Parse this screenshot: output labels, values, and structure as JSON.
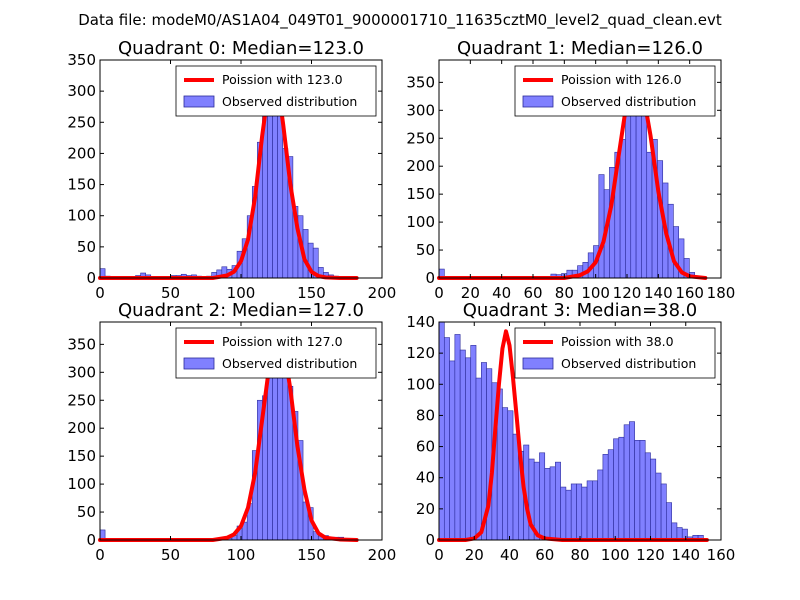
{
  "suptitle": "Data file: modeM0/AS1A04_049T01_9000001710_11635cztM0_level2_quad_clean.evt",
  "colors": {
    "bar_fill": "#8080ff",
    "bar_edge": "#2a2a9a",
    "poisson_line": "#ff0000",
    "axes": "#000000",
    "background": "#ffffff"
  },
  "chart_data": [
    {
      "type": "bar",
      "title": "Quadrant 0: Median=123.0",
      "xlim": [
        0,
        200
      ],
      "ylim": [
        0,
        350
      ],
      "xticks": [
        0,
        50,
        100,
        150,
        200
      ],
      "yticks": [
        0,
        50,
        100,
        150,
        200,
        250,
        300,
        350
      ],
      "xtick_labels": [
        "0",
        "50",
        "100",
        "150",
        "200"
      ],
      "ytick_labels": [
        "0",
        "50",
        "100",
        "150",
        "200",
        "250",
        "300",
        "350"
      ],
      "legend": {
        "placement": "top-right",
        "line_label": "Poission with 123.0",
        "bar_label": "Observed distribution"
      },
      "bin_width": 3.6,
      "bins": [
        [
          0,
          15
        ],
        [
          3.6,
          3
        ],
        [
          7.2,
          0
        ],
        [
          10.8,
          0
        ],
        [
          14.4,
          0
        ],
        [
          18,
          0
        ],
        [
          21.6,
          2
        ],
        [
          25.2,
          4
        ],
        [
          28.8,
          8
        ],
        [
          32.4,
          5
        ],
        [
          36,
          2
        ],
        [
          39.6,
          0
        ],
        [
          43.2,
          2
        ],
        [
          46.8,
          0
        ],
        [
          50.4,
          4
        ],
        [
          54,
          4
        ],
        [
          57.6,
          6
        ],
        [
          61.2,
          4
        ],
        [
          64.8,
          5
        ],
        [
          68.4,
          3
        ],
        [
          72,
          0
        ],
        [
          75.6,
          3
        ],
        [
          79.2,
          9
        ],
        [
          82.8,
          13
        ],
        [
          86.4,
          18
        ],
        [
          90,
          14
        ],
        [
          93.6,
          20
        ],
        [
          97.2,
          43
        ],
        [
          100.8,
          63
        ],
        [
          104.4,
          100
        ],
        [
          108,
          147
        ],
        [
          111.6,
          218
        ],
        [
          115.2,
          265
        ],
        [
          118.8,
          285
        ],
        [
          122.4,
          300
        ],
        [
          126,
          295
        ],
        [
          129.6,
          208
        ],
        [
          133.2,
          195
        ],
        [
          136.8,
          115
        ],
        [
          140.4,
          100
        ],
        [
          144,
          78
        ],
        [
          147.6,
          56
        ],
        [
          151.2,
          48
        ],
        [
          154.8,
          17
        ],
        [
          158.4,
          9
        ],
        [
          162,
          5
        ],
        [
          165.6,
          3
        ],
        [
          169.2,
          2
        ],
        [
          172.8,
          0
        ],
        [
          176.4,
          0
        ]
      ],
      "poisson": {
        "mean": 123.0,
        "x": [
          0,
          80,
          90,
          95,
          100,
          105,
          110,
          115,
          120,
          123,
          126,
          130,
          135,
          140,
          145,
          150,
          155,
          160,
          170,
          182
        ],
        "y": [
          0,
          0,
          4,
          10,
          27,
          62,
          130,
          228,
          311,
          335,
          312,
          245,
          150,
          80,
          30,
          10,
          3,
          1,
          0,
          0
        ]
      }
    },
    {
      "type": "bar",
      "title": "Quadrant 1: Median=126.0",
      "xlim": [
        0,
        180
      ],
      "ylim": [
        0,
        390
      ],
      "xticks": [
        0,
        20,
        40,
        60,
        80,
        100,
        120,
        140,
        160,
        180
      ],
      "yticks": [
        0,
        50,
        100,
        150,
        200,
        250,
        300,
        350
      ],
      "xtick_labels": [
        "0",
        "20",
        "40",
        "60",
        "80",
        "100",
        "120",
        "140",
        "160",
        "180"
      ],
      "ytick_labels": [
        "0",
        "50",
        "100",
        "150",
        "200",
        "250",
        "300",
        "350"
      ],
      "legend": {
        "placement": "top-right",
        "line_label": "Poission with 126.0",
        "bar_label": "Observed distribution"
      },
      "bin_width": 3.4,
      "bins": [
        [
          0,
          16
        ],
        [
          3.4,
          0
        ],
        [
          6.8,
          0
        ],
        [
          10.2,
          0
        ],
        [
          13.6,
          0
        ],
        [
          17,
          0
        ],
        [
          20.4,
          0
        ],
        [
          23.8,
          0
        ],
        [
          27.2,
          0
        ],
        [
          30.6,
          0
        ],
        [
          34,
          0
        ],
        [
          37.4,
          0
        ],
        [
          40.8,
          0
        ],
        [
          44.2,
          0
        ],
        [
          47.6,
          0
        ],
        [
          51,
          0
        ],
        [
          54.4,
          0
        ],
        [
          57.8,
          0
        ],
        [
          61.2,
          0
        ],
        [
          64.6,
          0
        ],
        [
          68,
          0
        ],
        [
          71.4,
          7
        ],
        [
          74.8,
          6
        ],
        [
          78.2,
          8
        ],
        [
          81.6,
          14
        ],
        [
          85,
          14
        ],
        [
          88.4,
          22
        ],
        [
          91.8,
          28
        ],
        [
          95.2,
          45
        ],
        [
          98.6,
          58
        ],
        [
          102,
          185
        ],
        [
          105.4,
          158
        ],
        [
          108.8,
          198
        ],
        [
          112.2,
          225
        ],
        [
          115.6,
          248
        ],
        [
          119,
          290
        ],
        [
          122.4,
          370
        ],
        [
          125.8,
          300
        ],
        [
          129.2,
          330
        ],
        [
          132.6,
          225
        ],
        [
          136,
          248
        ],
        [
          139.4,
          210
        ],
        [
          142.8,
          170
        ],
        [
          146.2,
          132
        ],
        [
          149.6,
          92
        ],
        [
          153,
          70
        ],
        [
          156.4,
          35
        ],
        [
          159.8,
          10
        ],
        [
          163.2,
          2
        ],
        [
          166.6,
          0
        ]
      ],
      "poisson": {
        "mean": 126.0,
        "x": [
          0,
          80,
          90,
          95,
          100,
          105,
          110,
          115,
          120,
          126,
          130,
          135,
          140,
          145,
          150,
          155,
          160,
          170
        ],
        "y": [
          0,
          0,
          5,
          12,
          28,
          65,
          130,
          225,
          318,
          372,
          335,
          255,
          155,
          80,
          30,
          10,
          3,
          0
        ]
      }
    },
    {
      "type": "bar",
      "title": "Quadrant 2: Median=127.0",
      "xlim": [
        0,
        200
      ],
      "ylim": [
        0,
        390
      ],
      "xticks": [
        0,
        50,
        100,
        150,
        200
      ],
      "yticks": [
        0,
        50,
        100,
        150,
        200,
        250,
        300,
        350
      ],
      "xtick_labels": [
        "0",
        "50",
        "100",
        "150",
        "200"
      ],
      "ytick_labels": [
        "0",
        "50",
        "100",
        "150",
        "200",
        "250",
        "300",
        "350"
      ],
      "legend": {
        "placement": "top-right",
        "line_label": "Poission with 127.0",
        "bar_label": "Observed distribution"
      },
      "bin_width": 3.6,
      "bins": [
        [
          0,
          18
        ],
        [
          3.6,
          0
        ],
        [
          7.2,
          0
        ],
        [
          10.8,
          0
        ],
        [
          14.4,
          0
        ],
        [
          18,
          0
        ],
        [
          21.6,
          0
        ],
        [
          25.2,
          0
        ],
        [
          28.8,
          0
        ],
        [
          32.4,
          0
        ],
        [
          36,
          0
        ],
        [
          39.6,
          0
        ],
        [
          43.2,
          0
        ],
        [
          46.8,
          0
        ],
        [
          50.4,
          0
        ],
        [
          54,
          0
        ],
        [
          57.6,
          0
        ],
        [
          61.2,
          0
        ],
        [
          64.8,
          0
        ],
        [
          68.4,
          0
        ],
        [
          72,
          0
        ],
        [
          75.6,
          0
        ],
        [
          79.2,
          0
        ],
        [
          82.8,
          0
        ],
        [
          86.4,
          0
        ],
        [
          90,
          3
        ],
        [
          93.6,
          8
        ],
        [
          97.2,
          25
        ],
        [
          100.8,
          32
        ],
        [
          104.4,
          65
        ],
        [
          108,
          160
        ],
        [
          111.6,
          250
        ],
        [
          115.2,
          258
        ],
        [
          118.8,
          300
        ],
        [
          122.4,
          365
        ],
        [
          126,
          345
        ],
        [
          129.6,
          330
        ],
        [
          133.2,
          275
        ],
        [
          136.8,
          230
        ],
        [
          140.4,
          178
        ],
        [
          144,
          68
        ],
        [
          147.6,
          58
        ],
        [
          151.2,
          15
        ],
        [
          154.8,
          7
        ],
        [
          158.4,
          8
        ],
        [
          162,
          0
        ],
        [
          165.6,
          5
        ],
        [
          169.2,
          5
        ],
        [
          172.8,
          3
        ],
        [
          176.4,
          0
        ]
      ],
      "poisson": {
        "mean": 127.0,
        "x": [
          0,
          80,
          90,
          95,
          100,
          105,
          110,
          115,
          120,
          127,
          130,
          135,
          140,
          145,
          150,
          155,
          160,
          170,
          182
        ],
        "y": [
          0,
          0,
          4,
          10,
          25,
          58,
          120,
          215,
          310,
          375,
          350,
          270,
          168,
          90,
          35,
          12,
          4,
          1,
          0
        ]
      }
    },
    {
      "type": "bar",
      "title": "Quadrant 3: Median=38.0",
      "xlim": [
        0,
        160
      ],
      "ylim": [
        0,
        140
      ],
      "xticks": [
        0,
        20,
        40,
        60,
        80,
        100,
        120,
        140,
        160
      ],
      "yticks": [
        0,
        20,
        40,
        60,
        80,
        100,
        120,
        140
      ],
      "xtick_labels": [
        "0",
        "20",
        "40",
        "60",
        "80",
        "100",
        "120",
        "140",
        "160"
      ],
      "ytick_labels": [
        "0",
        "20",
        "40",
        "60",
        "80",
        "100",
        "120",
        "140"
      ],
      "legend": {
        "placement": "top-right",
        "line_label": "Poission with 38.0",
        "bar_label": "Observed distribution"
      },
      "bin_width": 3.0,
      "bins": [
        [
          0,
          140
        ],
        [
          3,
          130
        ],
        [
          6,
          115
        ],
        [
          9,
          132
        ],
        [
          12,
          122
        ],
        [
          15,
          117
        ],
        [
          18,
          125
        ],
        [
          21,
          104
        ],
        [
          24,
          114
        ],
        [
          27,
          110
        ],
        [
          30,
          101
        ],
        [
          33,
          97
        ],
        [
          36,
          85
        ],
        [
          39,
          83
        ],
        [
          42,
          68
        ],
        [
          45,
          57
        ],
        [
          48,
          61
        ],
        [
          51,
          52
        ],
        [
          54,
          50
        ],
        [
          57,
          56
        ],
        [
          60,
          46
        ],
        [
          63,
          47
        ],
        [
          66,
          50
        ],
        [
          69,
          34
        ],
        [
          72,
          32
        ],
        [
          75,
          36
        ],
        [
          78,
          36
        ],
        [
          81,
          34
        ],
        [
          84,
          38
        ],
        [
          87,
          38
        ],
        [
          90,
          45
        ],
        [
          93,
          55
        ],
        [
          96,
          58
        ],
        [
          99,
          65
        ],
        [
          102,
          66
        ],
        [
          105,
          74
        ],
        [
          108,
          76
        ],
        [
          111,
          64
        ],
        [
          114,
          64
        ],
        [
          117,
          56
        ],
        [
          120,
          52
        ],
        [
          123,
          43
        ],
        [
          126,
          36
        ],
        [
          129,
          24
        ],
        [
          132,
          11
        ],
        [
          135,
          8
        ],
        [
          138,
          7
        ],
        [
          141,
          2
        ],
        [
          144,
          3
        ],
        [
          147,
          3
        ]
      ],
      "poisson": {
        "mean": 38.0,
        "x": [
          0,
          15,
          20,
          24,
          28,
          30,
          32,
          34,
          36,
          38,
          40,
          42,
          44,
          46,
          48,
          50,
          52,
          56,
          60,
          70,
          80,
          152
        ],
        "y": [
          0,
          0,
          1,
          5,
          22,
          43,
          72,
          100,
          123,
          134,
          125,
          104,
          80,
          55,
          34,
          20,
          10,
          3,
          1,
          0,
          0,
          0
        ]
      }
    }
  ]
}
